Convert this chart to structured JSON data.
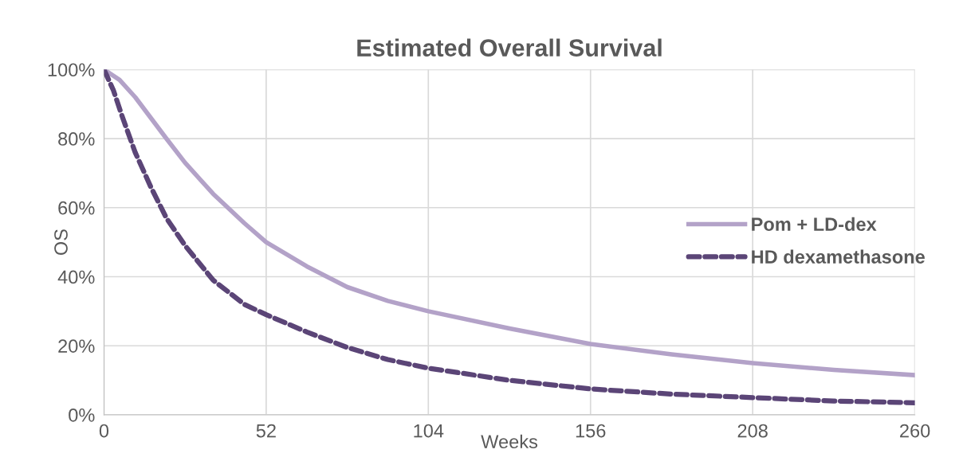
{
  "chart_data": {
    "type": "line",
    "title": "Estimated Overall Survival",
    "xlabel": "Weeks",
    "ylabel": "OS",
    "xlim": [
      0,
      260
    ],
    "xticks": [
      0,
      52,
      104,
      156,
      208,
      260
    ],
    "ylim": [
      0,
      100
    ],
    "yticks": [
      {
        "value": 0,
        "label": "0%"
      },
      {
        "value": 20,
        "label": "20%"
      },
      {
        "value": 40,
        "label": "40%"
      },
      {
        "value": 60,
        "label": "60%"
      },
      {
        "value": 80,
        "label": "80%"
      },
      {
        "value": 100,
        "label": "100%"
      }
    ],
    "grid": true,
    "legend": "right",
    "marker": "none",
    "series": [
      {
        "name": "Pom + LD-dex",
        "color": "#b3a2c8",
        "line_style": "solid",
        "x": [
          0,
          5,
          10,
          15,
          20,
          26,
          35,
          45,
          52,
          65,
          78,
          91,
          104,
          130,
          156,
          182,
          208,
          234,
          260
        ],
        "values": [
          100,
          97,
          92,
          86,
          80,
          73,
          64,
          55.5,
          50,
          43,
          37,
          33,
          30,
          25,
          20.5,
          17.5,
          15,
          13,
          11.5
        ]
      },
      {
        "name": "HD dexamethasone",
        "color": "#5b4577",
        "line_style": "dashed",
        "x": [
          0,
          3,
          6,
          10,
          15,
          20,
          26,
          35,
          45,
          52,
          65,
          78,
          91,
          104,
          130,
          156,
          182,
          208,
          234,
          260
        ],
        "values": [
          100,
          94,
          86,
          76,
          66,
          57,
          49,
          39,
          32,
          29,
          24,
          19.5,
          16,
          13.5,
          10,
          7.5,
          6,
          5,
          4,
          3.5
        ]
      }
    ]
  }
}
